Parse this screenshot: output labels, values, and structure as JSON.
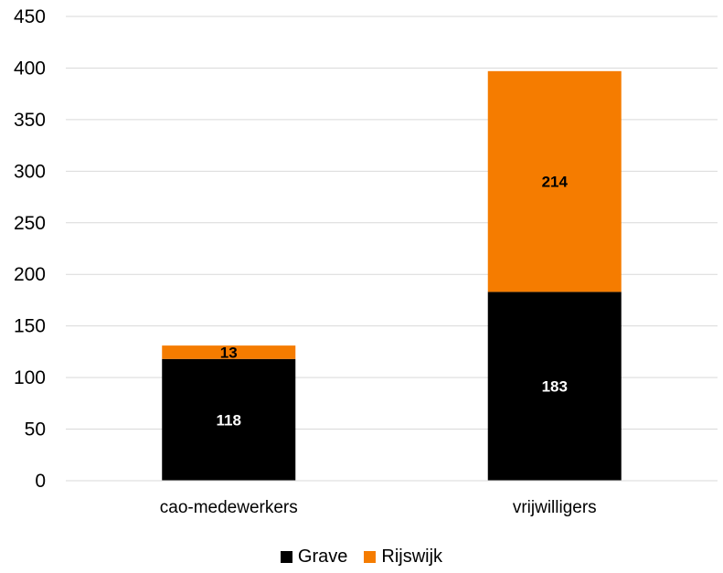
{
  "chart_data": {
    "type": "bar",
    "stacked": true,
    "categories": [
      "cao-medewerkers",
      "vrijwilligers"
    ],
    "series": [
      {
        "name": "Grave",
        "values": [
          118,
          183
        ],
        "color": "#000000",
        "label_color": "#ffffff"
      },
      {
        "name": "Rijswijk",
        "values": [
          13,
          214
        ],
        "color": "#f57c00",
        "label_color": "#000000"
      }
    ],
    "ylim": [
      0,
      450
    ],
    "yticks": [
      0,
      50,
      100,
      150,
      200,
      250,
      300,
      350,
      400,
      450
    ],
    "grid": true,
    "legend_position": "bottom"
  }
}
